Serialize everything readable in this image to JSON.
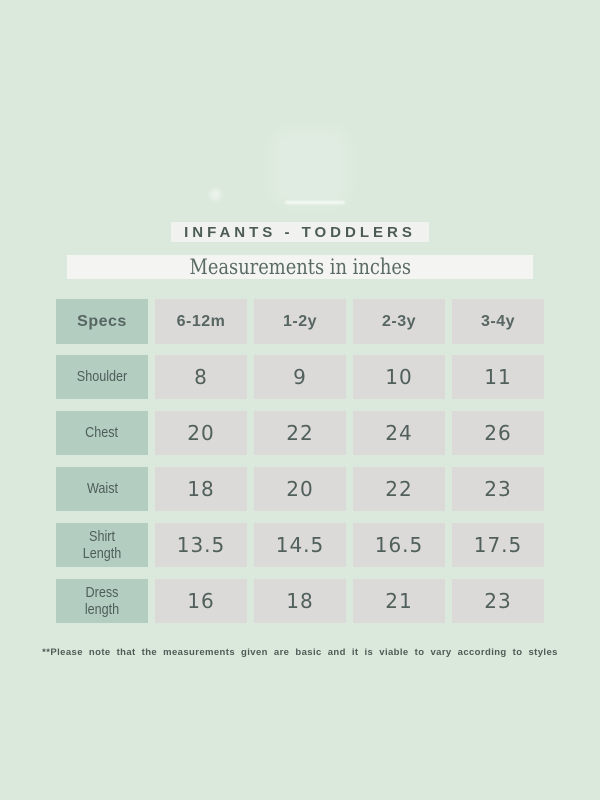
{
  "page": {
    "title": "INFANTS - TODDLERS",
    "subtitle": "Measurements in inches",
    "footnote": "**Please note that the measurements given are basic and it is viable to vary according to styles"
  },
  "table": {
    "header": [
      "Specs",
      "6-12m",
      "1-2y",
      "2-3y",
      "3-4y"
    ],
    "rows": [
      {
        "label": "Shoulder",
        "values": [
          "8",
          "9",
          "10",
          "11"
        ]
      },
      {
        "label": "Chest",
        "values": [
          "20",
          "22",
          "24",
          "26"
        ]
      },
      {
        "label": "Waist",
        "values": [
          "18",
          "20",
          "22",
          "23"
        ]
      },
      {
        "label": "Shirt Length",
        "values": [
          "13.5",
          "14.5",
          "16.5",
          "17.5"
        ]
      },
      {
        "label": "Dress length",
        "values": [
          "16",
          "18",
          "21",
          "23"
        ]
      }
    ]
  },
  "colors": {
    "bg": "#dbe9dc",
    "panel_white": "#f4f5f2",
    "cell_gray": "#dbdad9",
    "accent_green": "#b3cec1",
    "text_dark": "#51605c",
    "text_soft": "#5a6a65"
  },
  "chart_data": {
    "type": "table",
    "title": "INFANTS - TODDLERS",
    "subtitle": "Measurements in inches",
    "units": "inches",
    "columns": [
      "Specs",
      "6-12m",
      "1-2y",
      "2-3y",
      "3-4y"
    ],
    "rows": [
      [
        "Shoulder",
        8,
        9,
        10,
        11
      ],
      [
        "Chest",
        20,
        22,
        24,
        26
      ],
      [
        "Waist",
        18,
        20,
        22,
        23
      ],
      [
        "Shirt Length",
        13.5,
        14.5,
        16.5,
        17.5
      ],
      [
        "Dress length",
        16,
        18,
        21,
        23
      ]
    ],
    "footnote": "**Please note that the measurements given are basic and it is viable to vary according to styles"
  }
}
